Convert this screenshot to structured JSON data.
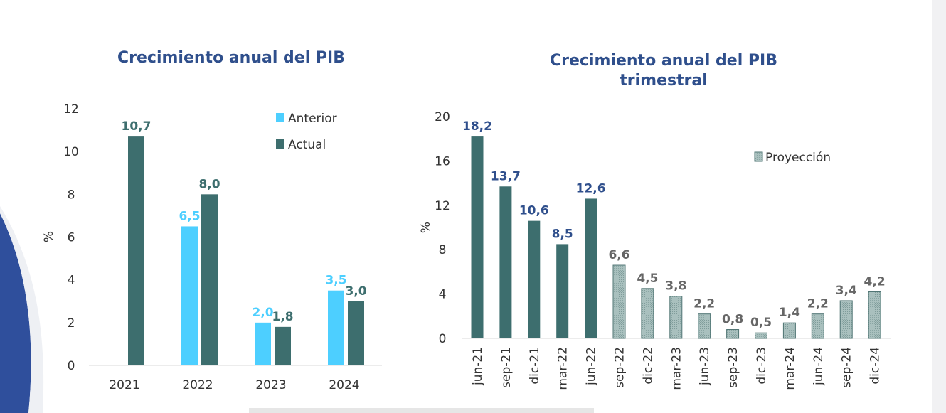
{
  "colors": {
    "anterior": "#4dcfff",
    "actual": "#3d6e6e",
    "proyeccion": "#9bb5b3",
    "title": "#2f4f8c",
    "label_blue": "#2f4f8c",
    "label_gray": "#666666"
  },
  "chart_data": [
    {
      "type": "bar",
      "title": "Crecimiento anual del PIB",
      "ylabel": "%",
      "ylim": [
        0,
        12
      ],
      "yticks": [
        "0",
        "2",
        "4",
        "6",
        "8",
        "10",
        "12"
      ],
      "categories": [
        "2021",
        "2022",
        "2023",
        "2024"
      ],
      "legend_position": "top-right",
      "series": [
        {
          "name": "Anterior",
          "values": [
            null,
            6.5,
            2.0,
            3.5
          ],
          "labels": [
            "",
            "6,5",
            "2,0",
            "3,5"
          ]
        },
        {
          "name": "Actual",
          "values": [
            10.7,
            8.0,
            1.8,
            3.0
          ],
          "labels": [
            "10,7",
            "8,0",
            "1,8",
            "3,0"
          ]
        }
      ]
    },
    {
      "type": "bar",
      "title": "Crecimiento anual del PIB trimestral",
      "ylabel": "%",
      "ylim": [
        0,
        20
      ],
      "yticks": [
        "0",
        "4",
        "8",
        "12",
        "16",
        "20"
      ],
      "categories": [
        "jun-21",
        "sep-21",
        "dic-21",
        "mar-22",
        "jun-22",
        "sep-22",
        "dic-22",
        "mar-23",
        "jun-23",
        "sep-23",
        "dic-23",
        "mar-24",
        "jun-24",
        "sep-24",
        "dic-24"
      ],
      "values": [
        18.2,
        13.7,
        10.6,
        8.5,
        12.6,
        6.6,
        4.5,
        3.8,
        2.2,
        0.8,
        0.5,
        1.4,
        2.2,
        3.4,
        4.2
      ],
      "labels": [
        "18,2",
        "13,7",
        "10,6",
        "8,5",
        "12,6",
        "6,6",
        "4,5",
        "3,8",
        "2,2",
        "0,8",
        "0,5",
        "1,4",
        "2,2",
        "3,4",
        "4,2"
      ],
      "projection": [
        false,
        false,
        false,
        false,
        false,
        true,
        true,
        true,
        true,
        true,
        true,
        true,
        true,
        true,
        true
      ],
      "legend_position": "top-right",
      "legend": [
        "Proyección"
      ]
    }
  ]
}
